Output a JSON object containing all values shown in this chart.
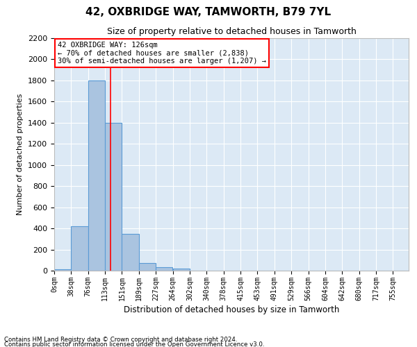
{
  "title": "42, OXBRIDGE WAY, TAMWORTH, B79 7YL",
  "subtitle": "Size of property relative to detached houses in Tamworth",
  "xlabel": "Distribution of detached houses by size in Tamworth",
  "ylabel": "Number of detached properties",
  "bar_categories": [
    "0sqm",
    "38sqm",
    "76sqm",
    "113sqm",
    "151sqm",
    "189sqm",
    "227sqm",
    "264sqm",
    "302sqm",
    "340sqm",
    "378sqm",
    "415sqm",
    "453sqm",
    "491sqm",
    "529sqm",
    "566sqm",
    "604sqm",
    "642sqm",
    "680sqm",
    "717sqm",
    "755sqm"
  ],
  "bar_values": [
    15,
    420,
    1800,
    1400,
    350,
    75,
    32,
    18,
    0,
    0,
    0,
    0,
    0,
    0,
    0,
    0,
    0,
    0,
    0,
    0,
    0
  ],
  "bar_color": "#aac4e0",
  "bar_edge_color": "#5b9bd5",
  "background_color": "#dce9f5",
  "grid_color": "#ffffff",
  "vline_x": 126,
  "vline_color": "red",
  "annotation_line1": "42 OXBRIDGE WAY: 126sqm",
  "annotation_line2": "← 70% of detached houses are smaller (2,838)",
  "annotation_line3": "30% of semi-detached houses are larger (1,207) →",
  "annotation_box_color": "white",
  "annotation_box_edge_color": "red",
  "ylim": [
    0,
    2200
  ],
  "xlim_max": 793,
  "bin_width": 37.9,
  "yticks": [
    0,
    200,
    400,
    600,
    800,
    1000,
    1200,
    1400,
    1600,
    1800,
    2000,
    2200
  ],
  "footnote1": "Contains HM Land Registry data © Crown copyright and database right 2024.",
  "footnote2": "Contains public sector information licensed under the Open Government Licence v3.0."
}
